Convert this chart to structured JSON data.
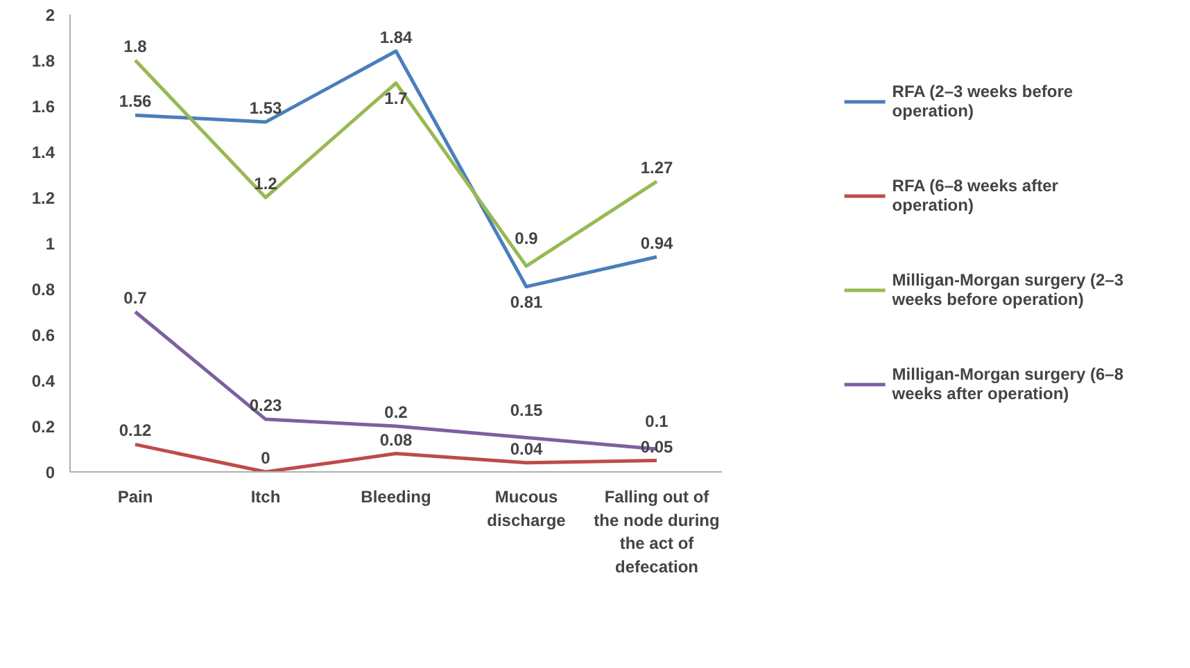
{
  "chart_data": {
    "type": "line",
    "categories": [
      "Pain",
      "Itch",
      "Bleeding",
      "Mucous discharge",
      "Falling out of the node during the act of defecation"
    ],
    "series": [
      {
        "name": "RFA (2–3 weeks before operation)",
        "color": "#4a7ebb",
        "values": [
          1.56,
          1.53,
          1.84,
          0.81,
          0.94
        ]
      },
      {
        "name": "RFA (6–8 weeks after operation)",
        "color": "#be4b48",
        "values": [
          0.12,
          0,
          0.08,
          0.04,
          0.05
        ]
      },
      {
        "name": "Milligan-Morgan surgery (2–3 weeks before operation)",
        "color": "#98b954",
        "values": [
          1.8,
          1.2,
          1.7,
          0.9,
          1.27
        ]
      },
      {
        "name": "Milligan-Morgan surgery (6–8 weeks after operation)",
        "color": "#7d60a0",
        "values": [
          0.7,
          0.23,
          0.2,
          0.15,
          0.1
        ]
      }
    ],
    "ylim": [
      0,
      2
    ],
    "yticks": [
      0,
      0.2,
      0.4,
      0.6,
      0.8,
      1,
      1.2,
      1.4,
      1.6,
      1.8,
      2
    ],
    "data_labels": true,
    "legend": "right",
    "grid": false,
    "marker": "none",
    "line_style": "solid"
  }
}
